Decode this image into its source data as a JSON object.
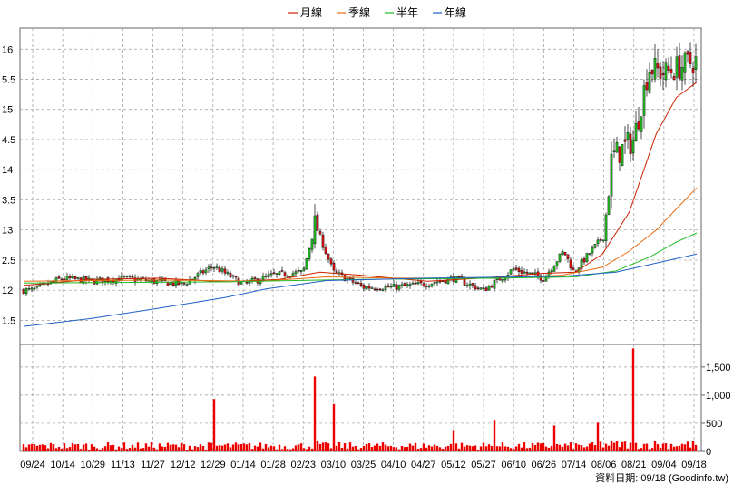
{
  "legend": [
    {
      "name": "月線",
      "color": "#cc2200"
    },
    {
      "name": "季線",
      "color": "#e86a10"
    },
    {
      "name": "半年",
      "color": "#22bb22"
    },
    {
      "name": "年線",
      "color": "#1f5fc8"
    }
  ],
  "source_label": "資料日期: 09/18 (Goodinfo.tw)",
  "chart_data": [
    {
      "type": "candlestick",
      "price_ticks": [
        "16",
        "5.5",
        "15",
        "4.5",
        "14",
        "3.5",
        "13",
        "2.5",
        "12",
        "1.5"
      ],
      "price_tick_values": [
        16,
        15.5,
        15,
        14.5,
        14,
        13.5,
        13,
        12.5,
        12,
        11.5
      ],
      "ylim": [
        11.1,
        16.35
      ],
      "up_color": "#22bb22",
      "down_color": "#dd1111",
      "date_labels": [
        "09/24",
        "10/14",
        "10/29",
        "11/13",
        "11/27",
        "12/12",
        "12/29",
        "01/14",
        "01/28",
        "02/23",
        "03/10",
        "03/25",
        "04/10",
        "04/27",
        "05/12",
        "05/27",
        "06/10",
        "06/26",
        "07/14",
        "08/06",
        "08/21",
        "09/04",
        "09/18"
      ],
      "key_closes": [
        {
          "date": "09/24",
          "close": 12.0
        },
        {
          "date": "10/14",
          "close": 12.2
        },
        {
          "date": "10/29",
          "close": 12.15
        },
        {
          "date": "11/13",
          "close": 12.2
        },
        {
          "date": "11/27",
          "close": 12.15
        },
        {
          "date": "12/12",
          "close": 12.1
        },
        {
          "date": "12/29",
          "close": 12.4
        },
        {
          "date": "01/14",
          "close": 12.1
        },
        {
          "date": "01/28",
          "close": 12.25
        },
        {
          "date": "02/23",
          "close": 12.3
        },
        {
          "date": "03/01",
          "close": 13.1
        },
        {
          "date": "03/10",
          "close": 12.3
        },
        {
          "date": "03/25",
          "close": 12.05
        },
        {
          "date": "04/10",
          "close": 12.05
        },
        {
          "date": "04/27",
          "close": 12.1
        },
        {
          "date": "05/12",
          "close": 12.2
        },
        {
          "date": "05/27",
          "close": 12.0
        },
        {
          "date": "06/10",
          "close": 12.35
        },
        {
          "date": "06/26",
          "close": 12.2
        },
        {
          "date": "07/08",
          "close": 12.65
        },
        {
          "date": "07/14",
          "close": 12.3
        },
        {
          "date": "08/06",
          "close": 12.9
        },
        {
          "date": "08/10",
          "close": 14.2
        },
        {
          "date": "08/21",
          "close": 14.5
        },
        {
          "date": "08/28",
          "close": 15.7
        },
        {
          "date": "09/04",
          "close": 15.6
        },
        {
          "date": "09/18",
          "close": 15.8
        }
      ],
      "ma_lines": {
        "月線": [
          [
            0,
            12.08
          ],
          [
            0.1,
            12.18
          ],
          [
            0.2,
            12.2
          ],
          [
            0.3,
            12.14
          ],
          [
            0.38,
            12.18
          ],
          [
            0.44,
            12.3
          ],
          [
            0.5,
            12.25
          ],
          [
            0.6,
            12.15
          ],
          [
            0.68,
            12.2
          ],
          [
            0.77,
            12.28
          ],
          [
            0.82,
            12.3
          ],
          [
            0.86,
            12.6
          ],
          [
            0.9,
            13.3
          ],
          [
            0.94,
            14.6
          ],
          [
            0.97,
            15.2
          ],
          [
            1.0,
            15.45
          ]
        ],
        "季線": [
          [
            0,
            12.15
          ],
          [
            0.2,
            12.17
          ],
          [
            0.35,
            12.15
          ],
          [
            0.45,
            12.22
          ],
          [
            0.55,
            12.2
          ],
          [
            0.7,
            12.2
          ],
          [
            0.8,
            12.25
          ],
          [
            0.86,
            12.38
          ],
          [
            0.9,
            12.65
          ],
          [
            0.94,
            13.0
          ],
          [
            0.97,
            13.35
          ],
          [
            1.0,
            13.7
          ]
        ],
        "半年": [
          [
            0,
            12.12
          ],
          [
            0.3,
            12.14
          ],
          [
            0.5,
            12.18
          ],
          [
            0.7,
            12.2
          ],
          [
            0.82,
            12.22
          ],
          [
            0.88,
            12.32
          ],
          [
            0.93,
            12.55
          ],
          [
            0.97,
            12.8
          ],
          [
            1.0,
            12.95
          ]
        ],
        "年線": [
          [
            0,
            11.4
          ],
          [
            0.1,
            11.53
          ],
          [
            0.2,
            11.7
          ],
          [
            0.3,
            11.88
          ],
          [
            0.36,
            12.02
          ],
          [
            0.45,
            12.16
          ],
          [
            0.6,
            12.2
          ],
          [
            0.8,
            12.23
          ],
          [
            0.88,
            12.3
          ],
          [
            0.94,
            12.45
          ],
          [
            1.0,
            12.6
          ]
        ]
      },
      "ma_x_unit": "fraction of date range"
    },
    {
      "type": "bar",
      "volume_ticks": [
        "1,500",
        "1,000",
        "500",
        "0"
      ],
      "volume_tick_values": [
        1500,
        1000,
        500,
        0
      ],
      "ylim": [
        0,
        1900
      ],
      "color": "#ee0000",
      "peaks": [
        {
          "date": "12/29",
          "value": 930
        },
        {
          "date": "03/01",
          "value": 1330
        },
        {
          "date": "03/10",
          "value": 840
        },
        {
          "date": "05/12",
          "value": 380
        },
        {
          "date": "06/01",
          "value": 560
        },
        {
          "date": "07/03",
          "value": 460
        },
        {
          "date": "08/01",
          "value": 510
        },
        {
          "date": "08/21",
          "value": 1830
        }
      ],
      "typical_value": 130
    }
  ]
}
